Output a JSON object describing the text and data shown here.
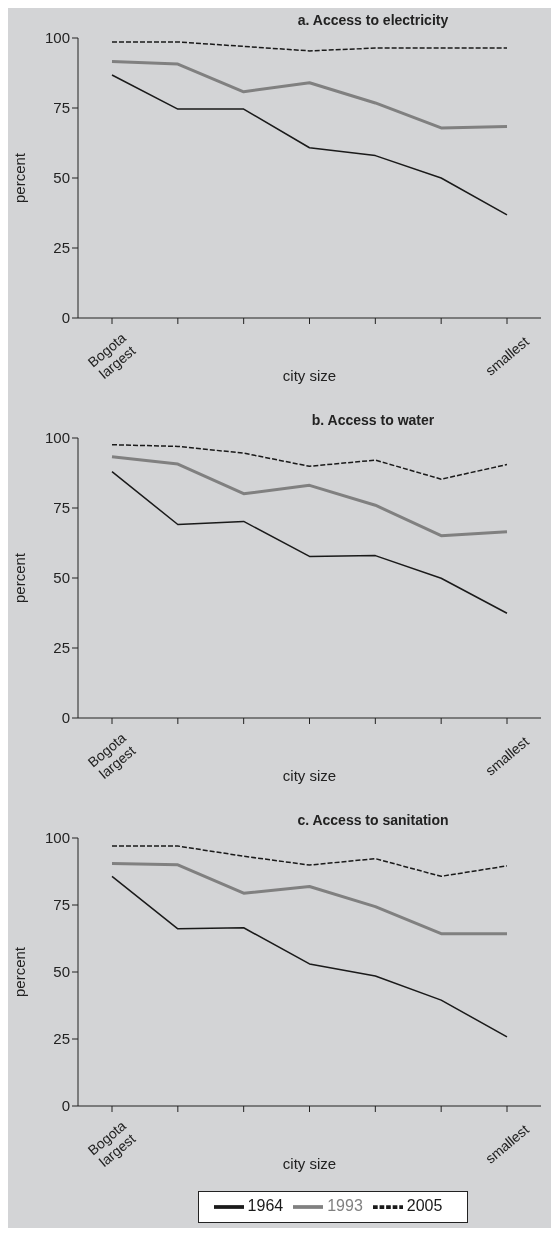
{
  "chart_data": [
    {
      "type": "line",
      "title": "a. Access to electricity",
      "xlabel": "city size",
      "ylabel": "percent",
      "categories": [
        "Bogota largest",
        null,
        null,
        null,
        null,
        null,
        "smallest"
      ],
      "ylim": [
        0,
        100
      ],
      "yticks": [
        0,
        25,
        50,
        75,
        100
      ],
      "grid": false,
      "legend": false,
      "marker": "none",
      "series": [
        {
          "color": "#1a1a1a",
          "line_style": "solid",
          "values": [
            86.8,
            74.6,
            74.6,
            60.8,
            58,
            50,
            36.8
          ]
        },
        {
          "color": "#808080",
          "line_style": "solid",
          "values": [
            91.6,
            90.7,
            80.8,
            84,
            76.8,
            67.9,
            68.4
          ]
        },
        {
          "color": "#1a1a1a",
          "line_style": "dashed",
          "values": [
            98.6,
            98.6,
            97,
            95.4,
            96.4,
            96.4,
            96.4
          ]
        }
      ]
    },
    {
      "type": "line",
      "title": "b. Access to water",
      "xlabel": "city size",
      "ylabel": "percent",
      "categories": [
        "Bogota largest",
        null,
        null,
        null,
        null,
        null,
        "smallest"
      ],
      "ylim": [
        0,
        100
      ],
      "yticks": [
        0,
        25,
        50,
        75,
        100
      ],
      "grid": false,
      "legend": false,
      "marker": "none",
      "series": [
        {
          "color": "#1a1a1a",
          "line_style": "solid",
          "values": [
            88,
            69.1,
            70.2,
            57.7,
            58,
            49.9,
            37.4
          ]
        },
        {
          "color": "#808080",
          "line_style": "solid",
          "values": [
            93.3,
            90.7,
            80.1,
            83.1,
            76,
            65.1,
            66.5
          ]
        },
        {
          "color": "#1a1a1a",
          "line_style": "dashed",
          "values": [
            97.6,
            97,
            94.6,
            89.9,
            92.1,
            85.3,
            90.5
          ]
        }
      ]
    },
    {
      "type": "line",
      "title": "c. Access to sanitation",
      "xlabel": "city size",
      "ylabel": "percent",
      "categories": [
        "Bogota largest",
        null,
        null,
        null,
        null,
        null,
        "smallest"
      ],
      "ylim": [
        0,
        100
      ],
      "yticks": [
        0,
        25,
        50,
        75,
        100
      ],
      "grid": false,
      "legend": "bottom",
      "marker": "none",
      "series": [
        {
          "name": "1964",
          "color": "#1a1a1a",
          "line_style": "solid",
          "values": [
            85.7,
            66.1,
            66.5,
            53,
            48.5,
            39.5,
            25.8
          ]
        },
        {
          "name": "1993",
          "color": "#808080",
          "line_style": "solid",
          "values": [
            90.5,
            90,
            79.4,
            81.9,
            74.4,
            64.3,
            64.3
          ]
        },
        {
          "name": "2005",
          "color": "#1a1a1a",
          "line_style": "dashed",
          "values": [
            97,
            97,
            93.2,
            89.9,
            92.3,
            85.7,
            89.6
          ]
        }
      ]
    }
  ]
}
